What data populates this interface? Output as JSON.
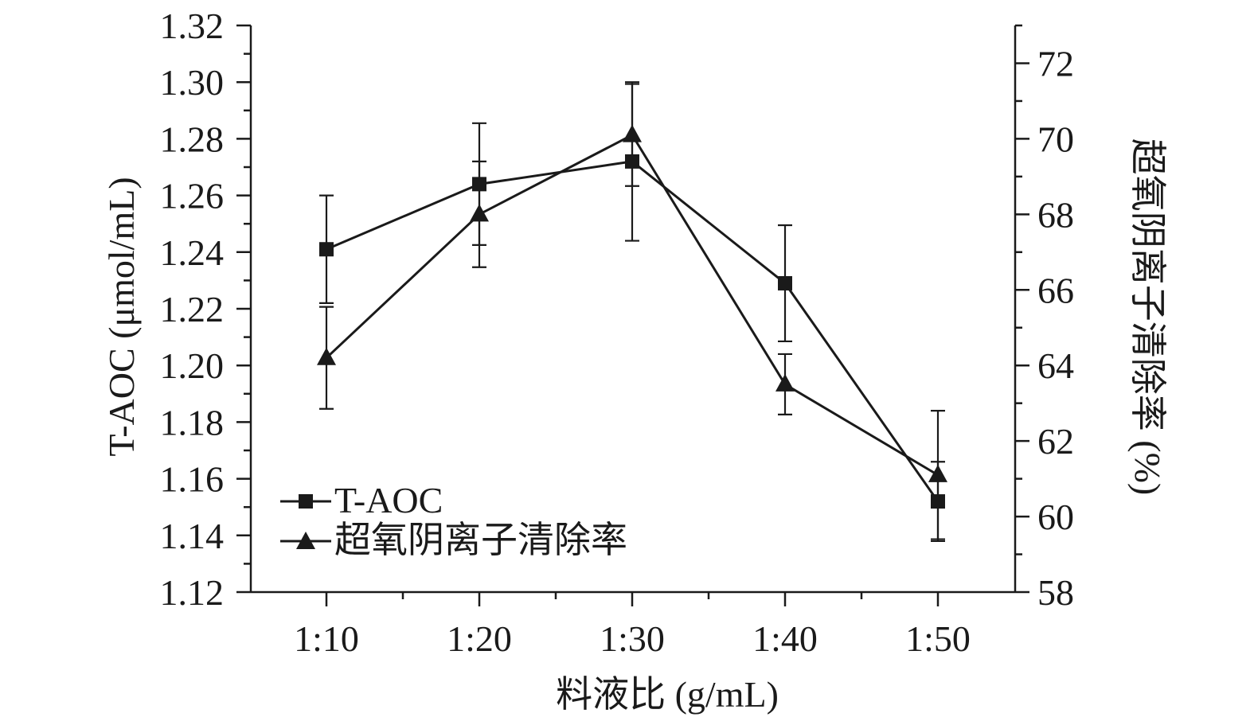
{
  "chart_data": {
    "type": "line",
    "categories": [
      "1:10",
      "1:20",
      "1:30",
      "1:40",
      "1:50"
    ],
    "xlabel": "料液比 (g/mL)",
    "y_left": {
      "label": "T-AOC (μmol/mL)",
      "range": [
        1.12,
        1.32
      ],
      "ticks": [
        "1.12",
        "1.14",
        "1.16",
        "1.18",
        "1.20",
        "1.22",
        "1.24",
        "1.26",
        "1.28",
        "1.30",
        "1.32"
      ]
    },
    "y_right": {
      "label": "超氧阴离子清除率 (%)",
      "range": [
        58,
        73
      ],
      "ticks": [
        "58",
        "60",
        "62",
        "64",
        "66",
        "68",
        "70",
        "72"
      ]
    },
    "series": [
      {
        "name": "T-AOC",
        "axis": "left",
        "marker": "square",
        "values": [
          1.241,
          1.264,
          1.272,
          1.229,
          1.152
        ],
        "errors": [
          0.019,
          0.0215,
          0.028,
          0.0205,
          0.014
        ]
      },
      {
        "name": "超氧阴离子清除率",
        "axis": "right",
        "marker": "triangle",
        "values": [
          64.2,
          68.0,
          70.1,
          63.5,
          61.1
        ],
        "errors": [
          1.35,
          1.4,
          1.35,
          0.8,
          1.7
        ]
      }
    ],
    "legend": {
      "position": "bottom-left"
    },
    "grid": false
  }
}
